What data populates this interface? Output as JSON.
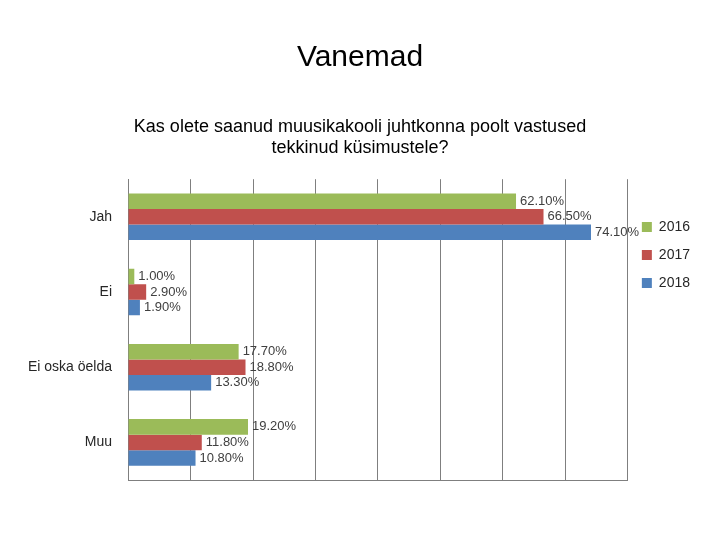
{
  "chart_data": {
    "type": "bar",
    "orientation": "horizontal",
    "title": "Vanemad",
    "subtitle": [
      "Kas olete saanud muusikakooli juhtkonna poolt vastused",
      "tekkinud küsimustele?"
    ],
    "categories": [
      "Jah",
      "Ei",
      "Ei oska öelda",
      "Muu"
    ],
    "series": [
      {
        "name": "2016",
        "color": "#9bbb59",
        "values": [
          62.1,
          1.0,
          17.7,
          19.2
        ],
        "value_labels": [
          "62.10%",
          "1.00%",
          "17.70%",
          "19.20%"
        ]
      },
      {
        "name": "2017",
        "color": "#c0504d",
        "values": [
          66.5,
          2.9,
          18.8,
          11.8
        ],
        "value_labels": [
          "66.50%",
          "2.90%",
          "18.80%",
          "11.80%"
        ]
      },
      {
        "name": "2018",
        "color": "#4f81bd",
        "values": [
          74.1,
          1.9,
          13.3,
          10.8
        ],
        "value_labels": [
          "74.10%",
          "1.90%",
          "13.30%",
          "10.80%"
        ]
      }
    ],
    "xlim": [
      0,
      80
    ],
    "xticks": [
      0,
      10,
      20,
      30,
      40,
      50,
      60,
      70,
      80
    ],
    "tick_labels": "y",
    "grid": true,
    "legend": "right",
    "data_labels": true
  }
}
